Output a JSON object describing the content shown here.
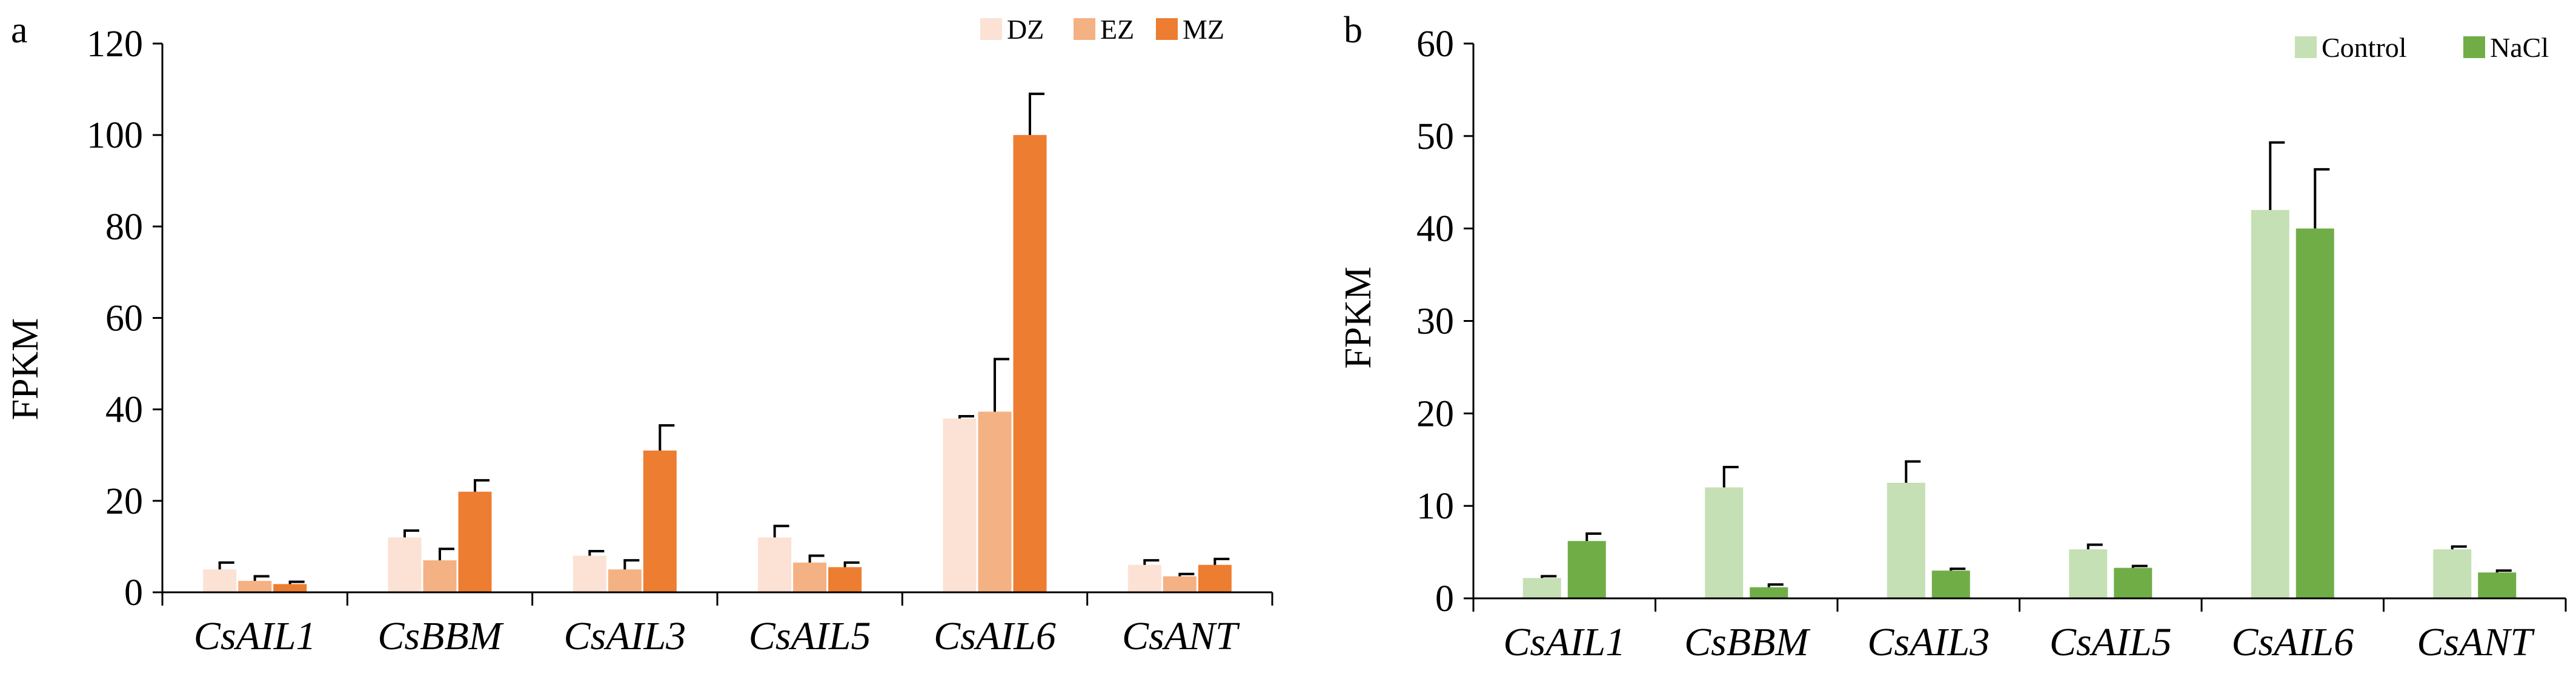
{
  "chart_data": [
    {
      "type": "bar",
      "panel_label": "a",
      "ylabel": "FPKM",
      "xlabel": "",
      "ylim": [
        0,
        120
      ],
      "yticks": [
        0,
        20,
        40,
        60,
        80,
        100,
        120
      ],
      "categories": [
        "CsAIL1",
        "CsBBM",
        "CsAIL3",
        "CsAIL5",
        "CsAIL6",
        "CsANT"
      ],
      "legend_position": "top-right",
      "series": [
        {
          "name": "DZ",
          "color": "#fbe2d5",
          "values": [
            5,
            12,
            8,
            12,
            38,
            6
          ],
          "errors": [
            1.5,
            1.5,
            1,
            2.5,
            0.5,
            1
          ]
        },
        {
          "name": "EZ",
          "color": "#f4b183",
          "values": [
            2.5,
            7,
            5,
            6.5,
            39.5,
            3.5
          ],
          "errors": [
            1,
            2.5,
            2,
            1.5,
            11.5,
            0.5
          ]
        },
        {
          "name": "MZ",
          "color": "#ed7d31",
          "values": [
            1.8,
            22,
            31,
            5.5,
            100,
            6
          ],
          "errors": [
            0.5,
            2.5,
            5.5,
            1,
            9,
            1.3
          ]
        }
      ]
    },
    {
      "type": "bar",
      "panel_label": "b",
      "ylabel": "FPKM",
      "xlabel": "",
      "ylim": [
        0,
        60
      ],
      "yticks": [
        0,
        10,
        20,
        30,
        40,
        50,
        60
      ],
      "categories": [
        "CsAIL1",
        "CsBBM",
        "CsAIL3",
        "CsAIL5",
        "CsAIL6",
        "CsANT"
      ],
      "legend_position": "top-right",
      "series": [
        {
          "name": "Control",
          "color": "#c5e0b4",
          "values": [
            2.2,
            12,
            12.5,
            5.3,
            42,
            5.3
          ],
          "errors": [
            0.2,
            2.2,
            2.3,
            0.5,
            7.3,
            0.3
          ]
        },
        {
          "name": "NaCl",
          "color": "#70ad47",
          "values": [
            6.2,
            1.2,
            3,
            3.3,
            40,
            2.8
          ],
          "errors": [
            0.8,
            0.3,
            0.2,
            0.2,
            6.4,
            0.2
          ]
        }
      ]
    }
  ]
}
